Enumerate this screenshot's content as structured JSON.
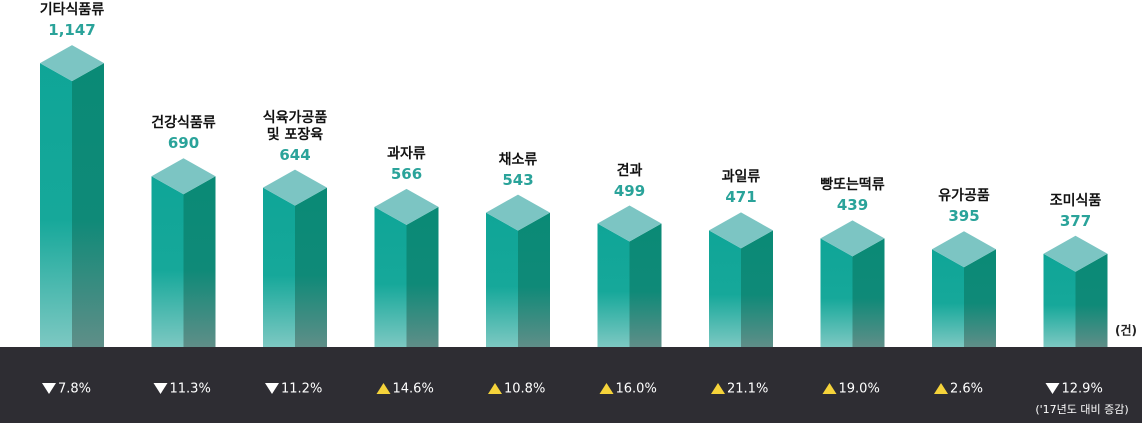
{
  "chart_data": {
    "type": "bar3d",
    "categories": [
      "기타식품류",
      "건강식품류",
      "식육가공품\n및 포장육",
      "과자류",
      "채소류",
      "견과",
      "과일류",
      "빵또는떡류",
      "유가공품",
      "조미식품"
    ],
    "values": [
      1147,
      690,
      644,
      566,
      543,
      499,
      471,
      439,
      395,
      377
    ],
    "value_labels": [
      "1,147",
      "690",
      "644",
      "566",
      "543",
      "499",
      "471",
      "439",
      "395",
      "377"
    ],
    "changes": [
      -7.8,
      -11.3,
      -11.2,
      14.6,
      10.8,
      16.0,
      21.1,
      19.0,
      2.6,
      -12.9
    ],
    "change_labels": [
      "7.8%",
      "11.3%",
      "11.2%",
      "14.6%",
      "10.8%",
      "16.0%",
      "21.1%",
      "19.0%",
      "2.6%",
      "12.9%"
    ],
    "unit": "(건)",
    "note": "('17년도 대비 증감)",
    "ylim": [
      0,
      1200
    ],
    "color": "#16a89a"
  }
}
